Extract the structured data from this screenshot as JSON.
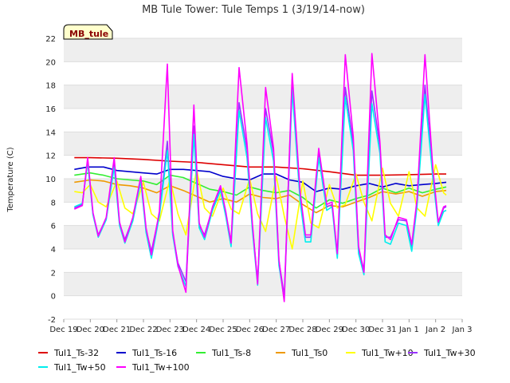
{
  "chart_data": {
    "type": "line",
    "title": "MB Tule Tower: Tule Temps 1 (3/19/14-now)",
    "badge": "MB_tule",
    "ylabel": "Temperature (C)",
    "xlabel": "",
    "ylim": [
      -2,
      22
    ],
    "xlim": [
      0,
      15
    ],
    "grid": "horizontal bands",
    "legend": "bottom",
    "y_ticks": [
      "-2",
      "0",
      "2",
      "4",
      "6",
      "8",
      "10",
      "12",
      "14",
      "16",
      "18",
      "20",
      "22"
    ],
    "x_ticks": [
      "Dec 19",
      "Dec 20",
      "Dec 21",
      "Dec 22",
      "Dec 23",
      "Dec 24",
      "Dec 25",
      "Dec 26",
      "Dec 27",
      "Dec 28",
      "Dec 29",
      "Dec 30",
      "Dec 31",
      "Jan 1",
      "Jan 2",
      "Jan 3"
    ],
    "series": [
      {
        "name": "Tul1_Ts-32",
        "color": "#dd0000",
        "x": [
          0.4,
          1,
          2,
          3,
          4,
          5,
          6,
          7,
          8,
          9,
          10,
          11,
          11.5,
          12,
          13,
          14,
          14.4
        ],
        "values": [
          11.8,
          11.8,
          11.75,
          11.65,
          11.5,
          11.4,
          11.2,
          11.0,
          11.0,
          10.85,
          10.6,
          10.3,
          10.3,
          10.3,
          10.35,
          10.4,
          10.4
        ]
      },
      {
        "name": "Tul1_Ts-16",
        "color": "#0000cc",
        "x": [
          0.4,
          0.9,
          1.5,
          2,
          2.5,
          3,
          3.5,
          4,
          4.5,
          5,
          5.5,
          6,
          6.5,
          7,
          7.5,
          8,
          8.5,
          9,
          9.5,
          10,
          10.5,
          11,
          11.5,
          12,
          12.5,
          13,
          13.5,
          14,
          14.4
        ],
        "values": [
          10.8,
          11.0,
          11.0,
          10.7,
          10.6,
          10.5,
          10.4,
          10.8,
          10.8,
          10.7,
          10.6,
          10.2,
          10.0,
          9.9,
          10.4,
          10.4,
          9.9,
          9.7,
          8.9,
          9.2,
          9.1,
          9.4,
          9.6,
          9.3,
          9.6,
          9.4,
          9.5,
          9.6,
          9.7
        ]
      },
      {
        "name": "Tul1_Ts-8",
        "color": "#33ee33",
        "x": [
          0.4,
          1,
          1.5,
          2,
          2.5,
          3,
          3.5,
          4,
          4.5,
          5,
          5.5,
          6,
          6.5,
          7,
          7.5,
          8,
          8.5,
          9,
          9.5,
          10,
          10.5,
          11,
          11.5,
          12,
          12.5,
          13,
          13.5,
          14,
          14.4
        ],
        "values": [
          10.3,
          10.5,
          10.3,
          10.0,
          9.9,
          9.8,
          9.5,
          10.3,
          10.1,
          9.6,
          9.1,
          8.9,
          8.6,
          9.3,
          9.0,
          8.8,
          9.0,
          8.4,
          7.5,
          8.2,
          7.9,
          8.3,
          8.6,
          9.2,
          8.8,
          9.2,
          8.8,
          9.1,
          9.3
        ]
      },
      {
        "name": "Tul1_Ts0",
        "color": "#ee9900",
        "x": [
          0.4,
          1,
          1.5,
          2,
          2.5,
          3,
          3.5,
          4,
          4.5,
          5,
          5.5,
          6,
          6.5,
          7,
          7.5,
          8,
          8.5,
          9,
          9.5,
          10,
          10.5,
          11,
          11.5,
          12,
          12.5,
          13,
          13.5,
          14,
          14.4
        ],
        "values": [
          9.7,
          9.9,
          9.8,
          9.5,
          9.4,
          9.2,
          8.8,
          9.4,
          9.0,
          8.5,
          8.0,
          8.3,
          8.0,
          8.7,
          8.4,
          8.3,
          8.6,
          7.8,
          7.1,
          7.7,
          7.6,
          8.0,
          8.4,
          8.9,
          8.7,
          8.9,
          8.5,
          8.9,
          9.0
        ]
      },
      {
        "name": "Tul1_Tw+10",
        "color": "#ffff00",
        "x": [
          0.4,
          0.7,
          1.0,
          1.3,
          1.6,
          2.0,
          2.3,
          2.6,
          3.0,
          3.3,
          3.6,
          4.0,
          4.3,
          4.6,
          5.0,
          5.3,
          5.6,
          6.0,
          6.3,
          6.6,
          7.0,
          7.3,
          7.6,
          8.0,
          8.3,
          8.6,
          9.0,
          9.3,
          9.6,
          10.0,
          10.3,
          10.6,
          11.0,
          11.3,
          11.6,
          12.0,
          12.3,
          12.6,
          13.0,
          13.3,
          13.6,
          14.0,
          14.3,
          14.4
        ],
        "values": [
          8.9,
          8.8,
          9.5,
          8.0,
          7.6,
          9.8,
          7.5,
          7.0,
          9.7,
          7.0,
          6.4,
          10.0,
          7.0,
          5.2,
          10.8,
          7.5,
          6.8,
          9.2,
          7.4,
          7.0,
          10.0,
          7.0,
          5.5,
          10.2,
          6.8,
          4.0,
          9.8,
          6.2,
          5.8,
          9.5,
          7.5,
          7.8,
          10.4,
          8.0,
          6.4,
          10.9,
          7.9,
          6.8,
          10.6,
          7.5,
          6.8,
          11.2,
          8.8,
          8.6
        ]
      },
      {
        "name": "Tul1_Tw+30",
        "color": "#9933ff",
        "x": [
          0.4,
          0.7,
          0.9,
          1.1,
          1.3,
          1.6,
          1.9,
          2.1,
          2.3,
          2.6,
          2.9,
          3.1,
          3.3,
          3.6,
          3.9,
          4.1,
          4.3,
          4.6,
          4.9,
          5.1,
          5.3,
          5.6,
          5.9,
          6.1,
          6.3,
          6.6,
          6.9,
          7.1,
          7.3,
          7.6,
          7.9,
          8.1,
          8.3,
          8.6,
          8.9,
          9.1,
          9.3,
          9.6,
          9.9,
          10.1,
          10.3,
          10.6,
          10.9,
          11.1,
          11.3,
          11.6,
          11.9,
          12.1,
          12.3,
          12.6,
          12.9,
          13.1,
          13.3,
          13.6,
          13.9,
          14.1,
          14.3,
          14.4
        ],
        "values": [
          7.5,
          7.8,
          11.6,
          7.0,
          5.2,
          6.6,
          11.4,
          6.2,
          4.8,
          6.6,
          10.0,
          5.6,
          3.8,
          7.0,
          13.2,
          5.4,
          2.8,
          1.2,
          14.5,
          6.0,
          5.2,
          7.5,
          9.2,
          7.0,
          4.6,
          16.5,
          12.5,
          6.0,
          1.2,
          16.0,
          12.2,
          3.0,
          0.0,
          18.5,
          8.5,
          5.0,
          5.0,
          12.3,
          7.6,
          7.8,
          3.5,
          17.8,
          13.0,
          4.0,
          2.2,
          17.5,
          12.8,
          5.0,
          5.0,
          6.5,
          6.4,
          4.2,
          8.0,
          18.0,
          10.5,
          6.2,
          7.5,
          7.6
        ]
      },
      {
        "name": "Tul1_Tw+50",
        "color": "#00eeee",
        "x": [
          0.4,
          0.7,
          0.9,
          1.1,
          1.3,
          1.6,
          1.9,
          2.1,
          2.3,
          2.6,
          2.9,
          3.1,
          3.3,
          3.6,
          3.9,
          4.1,
          4.3,
          4.6,
          4.9,
          5.1,
          5.3,
          5.6,
          5.9,
          6.1,
          6.3,
          6.6,
          6.9,
          7.1,
          7.3,
          7.6,
          7.9,
          8.1,
          8.3,
          8.6,
          8.9,
          9.1,
          9.3,
          9.6,
          9.9,
          10.1,
          10.3,
          10.6,
          10.9,
          11.1,
          11.3,
          11.6,
          11.9,
          12.1,
          12.3,
          12.6,
          12.9,
          13.1,
          13.3,
          13.6,
          13.9,
          14.1,
          14.3,
          14.4
        ],
        "values": [
          7.6,
          7.9,
          11.4,
          6.9,
          5.0,
          6.5,
          11.0,
          6.0,
          4.5,
          6.4,
          9.8,
          5.4,
          3.2,
          6.8,
          12.4,
          5.2,
          2.5,
          0.8,
          13.8,
          5.8,
          4.8,
          7.3,
          9.0,
          6.8,
          4.2,
          15.8,
          11.8,
          5.6,
          0.9,
          15.2,
          11.5,
          2.6,
          -0.3,
          17.6,
          8.0,
          4.6,
          4.6,
          11.8,
          7.3,
          7.6,
          3.2,
          17.0,
          12.4,
          3.6,
          1.8,
          16.4,
          12.2,
          4.6,
          4.4,
          6.2,
          6.0,
          3.8,
          7.6,
          17.2,
          10.0,
          6.0,
          7.2,
          7.3
        ]
      },
      {
        "name": "Tul1_Tw+100",
        "color": "#ff00ff",
        "x": [
          0.4,
          0.7,
          0.9,
          1.1,
          1.3,
          1.6,
          1.9,
          2.1,
          2.3,
          2.6,
          2.9,
          3.1,
          3.3,
          3.6,
          3.9,
          4.1,
          4.3,
          4.6,
          4.9,
          5.1,
          5.3,
          5.6,
          5.9,
          6.1,
          6.3,
          6.6,
          6.9,
          7.1,
          7.3,
          7.6,
          7.9,
          8.1,
          8.3,
          8.6,
          8.9,
          9.1,
          9.3,
          9.6,
          9.9,
          10.1,
          10.3,
          10.6,
          10.9,
          11.1,
          11.3,
          11.6,
          11.9,
          12.1,
          12.3,
          12.6,
          12.9,
          13.1,
          13.3,
          13.6,
          13.9,
          14.1,
          14.3,
          14.4
        ],
        "values": [
          7.4,
          7.7,
          11.8,
          7.1,
          5.1,
          6.7,
          11.8,
          6.3,
          4.6,
          6.7,
          10.2,
          5.8,
          3.5,
          7.2,
          19.8,
          5.6,
          2.6,
          0.3,
          16.3,
          6.2,
          5.0,
          7.6,
          9.4,
          7.2,
          4.5,
          19.5,
          13.0,
          6.2,
          1.0,
          17.8,
          12.6,
          3.1,
          -0.5,
          19.0,
          8.8,
          5.2,
          5.2,
          12.6,
          7.8,
          8.0,
          3.6,
          20.6,
          13.6,
          4.2,
          2.0,
          20.7,
          13.2,
          5.2,
          4.8,
          6.7,
          6.5,
          4.4,
          8.2,
          20.6,
          10.8,
          6.3,
          7.6,
          7.7
        ]
      }
    ]
  }
}
